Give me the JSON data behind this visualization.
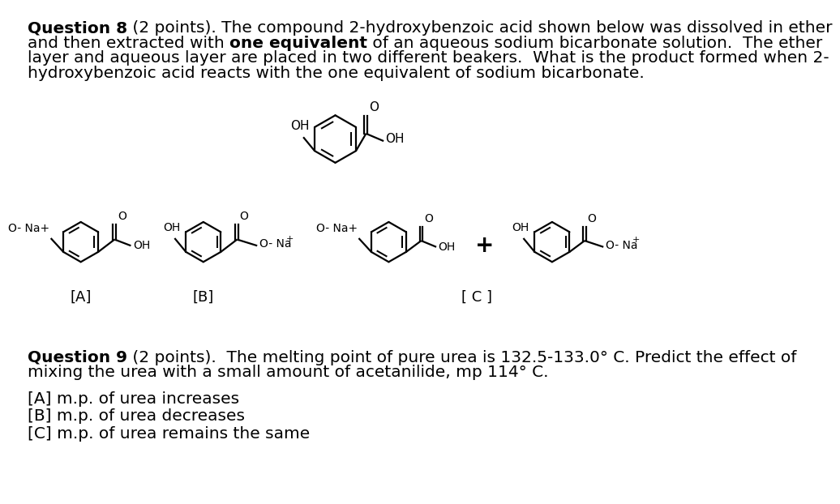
{
  "bg_color": "#ffffff",
  "text_color": "#000000",
  "q8_bold1": "Question 8",
  "q8_normal1": " (2 points). The compound 2-hydroxybenzoic acid shown below was dissolved in ether",
  "q8_normal2a": "and then extracted with ",
  "q8_bold2": "one equivalent",
  "q8_normal2b": " of an aqueous sodium bicarbonate solution.  The ether",
  "q8_normal3": "layer and aqueous layer are placed in two different beakers.  What is the product formed when 2-",
  "q8_normal4": "hydroxybenzoic acid reacts with the one equivalent of sodium bicarbonate.",
  "q9_bold": "Question 9",
  "q9_normal1": " (2 points).  The melting point of pure urea is 132.5-133.0° C. Predict the effect of",
  "q9_normal2": "mixing the urea with a small amount of acetanilide, mp 114° C.",
  "q9_a": "[A] m.p. of urea increases",
  "q9_b": "[B] m.p. of urea decreases",
  "q9_c": "[C] m.p. of urea remains the same",
  "font_size": 14.5,
  "lw": 1.6,
  "struct_color": "#000000",
  "label_color": "#000000"
}
